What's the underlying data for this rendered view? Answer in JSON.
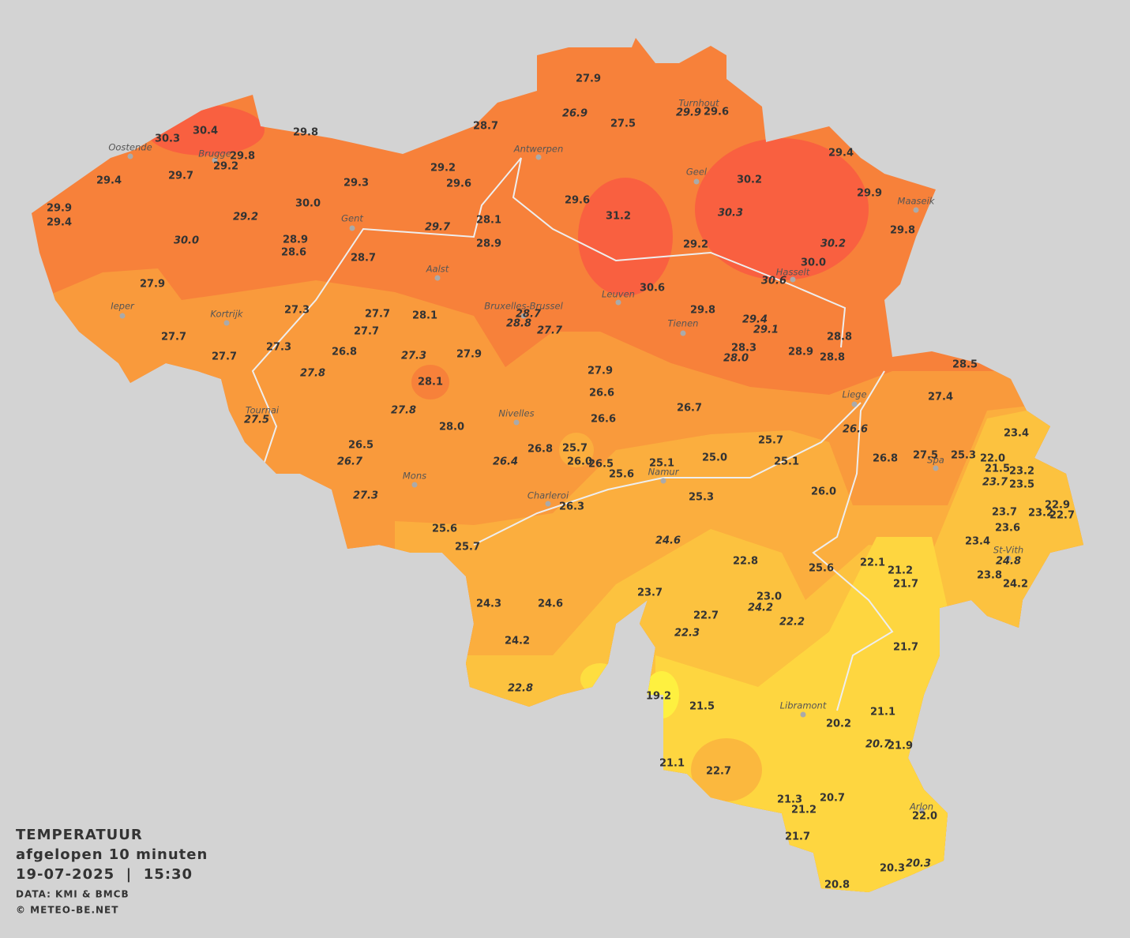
{
  "header": {
    "title": "TEMPERATUUR",
    "subtitle": "afgelopen 10 minuten",
    "timestamp": "19-07-2025  |  15:30",
    "source": "DATA: KMI & BMCB",
    "copyright": "© METEO-BE.NET"
  },
  "cities": [
    "Oostende",
    "Brugge",
    "Antwerpen",
    "Turnhout",
    "Geel",
    "Maaseik",
    "Gent",
    "Aalst",
    "Ieper",
    "Kortrijk",
    "Bruxelles-Brussel",
    "Leuven",
    "Hasselt",
    "Tienen",
    "Liege",
    "Tournai",
    "Nivelles",
    "Spa",
    "Mons",
    "Namur",
    "Charleroi",
    "St-Vith",
    "Libramont",
    "Arlon"
  ],
  "stations": [
    "27.9",
    "27.5",
    "29.6",
    "28.7",
    "30.4",
    "30.3",
    "29.8",
    "29.8",
    "29.2",
    "29.4",
    "29.7",
    "29.4",
    "29.2",
    "29.6",
    "29.3",
    "30.2",
    "29.9",
    "29.6",
    "29.9",
    "29.4",
    "30.0",
    "31.2",
    "28.1",
    "29.8",
    "28.9",
    "28.6",
    "28.9",
    "29.2",
    "28.7",
    "30.0",
    "27.9",
    "30.6",
    "27.3",
    "29.8",
    "27.7",
    "28.1",
    "27.7",
    "27.7",
    "28.8",
    "27.3",
    "28.3",
    "26.8",
    "27.9",
    "28.9",
    "28.8",
    "27.7",
    "27.9",
    "28.5",
    "28.1",
    "26.6",
    "27.4",
    "26.7",
    "26.6",
    "28.0",
    "23.4",
    "25.7",
    "26.5",
    "25.7",
    "26.8",
    "26.8",
    "27.5",
    "25.3",
    "22.0",
    "26.0",
    "26.5",
    "25.1",
    "25.0",
    "25.1",
    "21.5",
    "25.6",
    "23.2",
    "23.5",
    "26.0",
    "25.3",
    "26.3",
    "22.9",
    "23.7",
    "23.2",
    "22.7",
    "23.6",
    "25.6",
    "23.4",
    "25.7",
    "22.8",
    "22.1",
    "21.2",
    "25.6",
    "23.8",
    "21.7",
    "24.2",
    "23.7",
    "23.0",
    "24.3",
    "24.6",
    "22.7",
    "24.2",
    "21.7",
    "19.2",
    "21.5",
    "20.2",
    "21.1",
    "21.9",
    "21.1",
    "22.7",
    "20.7",
    "21.3",
    "21.2",
    "22.0",
    "21.7",
    "20.3",
    "20.8"
  ],
  "stations_italic": [
    "26.9",
    "29.9",
    "29.2",
    "29.7",
    "30.0",
    "30.3",
    "30.2",
    "30.6",
    "28.7",
    "28.8",
    "27.7",
    "29.4",
    "29.1",
    "27.3",
    "28.0",
    "27.8",
    "27.8",
    "27.5",
    "26.6",
    "26.7",
    "26.4",
    "23.7",
    "27.3",
    "24.6",
    "24.8",
    "24.2",
    "22.2",
    "22.3",
    "22.8",
    "20.7",
    "20.3"
  ]
}
